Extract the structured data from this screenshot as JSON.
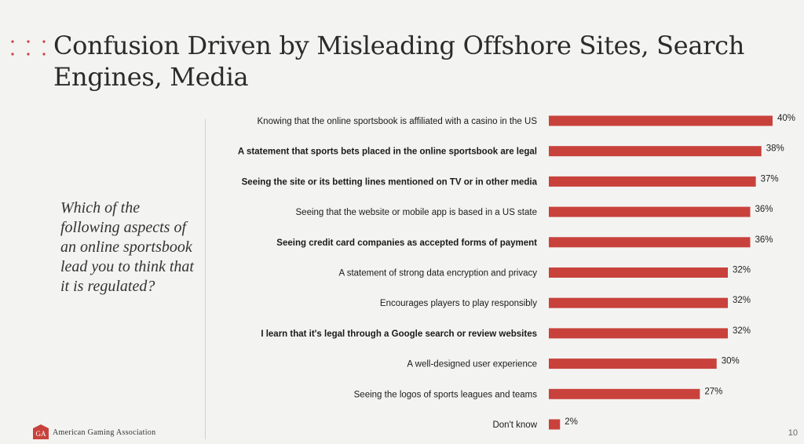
{
  "slide": {
    "title": "Confusion Driven by Misleading Offshore Sites, Search Engines, Media",
    "question": "Which of the following aspects of an online sportsbook lead you to think that it is regulated?",
    "organization": "American Gaming Association",
    "page_number": "10",
    "accent_color": "#c8423b"
  },
  "chart_data": {
    "type": "bar",
    "orientation": "horizontal",
    "categories": [
      "Knowing that the online sportsbook is affiliated with a casino in the US",
      "A statement that sports bets placed in the online sportsbook are legal",
      "Seeing the site or its betting lines mentioned on TV or in other media",
      "Seeing that the website or mobile app is based in a US state",
      "Seeing credit card companies as accepted forms of payment",
      "A statement of strong data encryption and privacy",
      "Encourages players to play responsibly",
      "I learn that it's legal through a Google search or review websites",
      "A well-designed user experience",
      "Seeing the logos of sports leagues and teams",
      "Don't know"
    ],
    "bold_categories": [
      false,
      true,
      true,
      false,
      true,
      false,
      false,
      true,
      false,
      false,
      false
    ],
    "values": [
      40,
      38,
      37,
      36,
      36,
      32,
      32,
      32,
      30,
      27,
      2
    ],
    "value_labels": [
      "40%",
      "38%",
      "37%",
      "36%",
      "36%",
      "32%",
      "32%",
      "32%",
      "30%",
      "27%",
      "2%"
    ],
    "xlim": [
      0,
      40
    ],
    "bar_color": "#c8423b",
    "grid": false,
    "legend": false,
    "title": "",
    "xlabel": "",
    "ylabel": ""
  }
}
